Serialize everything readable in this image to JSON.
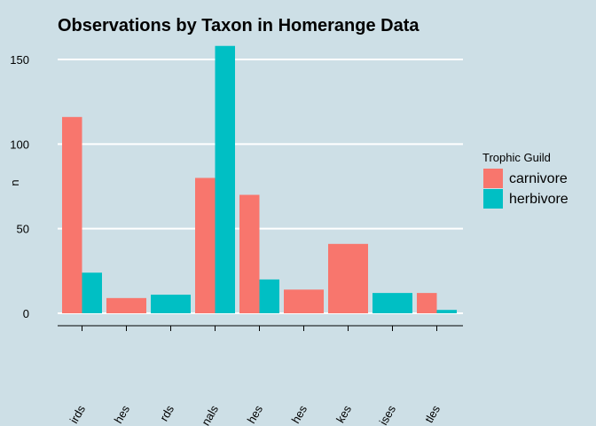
{
  "chart_data": {
    "type": "bar",
    "title": "Observations by Taxon in Homerange Data",
    "xlabel": "",
    "ylabel": "n",
    "ylim": [
      0,
      160
    ],
    "yticks": [
      0,
      50,
      100,
      150
    ],
    "categories": [
      "birds",
      "lake fishes",
      "lizards",
      "mammals",
      "marine fishes",
      "river fishes",
      "snakes",
      "tortoises",
      "turtles"
    ],
    "category_labels_visible": [
      "irds",
      "hes",
      "rds",
      "nals",
      "hes",
      "hes",
      "kes",
      "ises",
      "tles"
    ],
    "legend": {
      "title": "Trophic Guild",
      "position": "right"
    },
    "grid": true,
    "series": [
      {
        "name": "carnivore",
        "color": "#f8766d",
        "values": [
          116,
          9,
          null,
          80,
          70,
          14,
          41,
          null,
          12
        ]
      },
      {
        "name": "herbivore",
        "color": "#00bfc4",
        "values": [
          24,
          null,
          11,
          158,
          20,
          null,
          null,
          12,
          2
        ]
      }
    ]
  }
}
